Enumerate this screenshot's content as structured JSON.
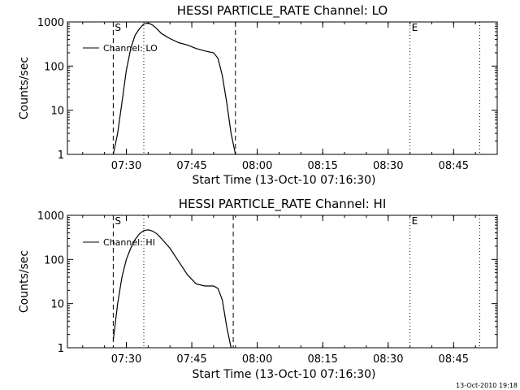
{
  "footer": {
    "timestamp": "13-Oct-2010 19:18"
  },
  "chart_data": [
    {
      "type": "line",
      "title": "HESSI PARTICLE_RATE Channel: LO",
      "xlabel": "Start Time (13-Oct-10 07:16:30)",
      "ylabel": "Counts/sec",
      "yscale": "log",
      "xlim": [
        "07:16:30",
        "08:55:00"
      ],
      "ylim": [
        1,
        1000
      ],
      "xticks": [
        "07:30",
        "07:45",
        "08:00",
        "08:15",
        "08:30",
        "08:45"
      ],
      "yticks": [
        "1",
        "10",
        "100",
        "1000"
      ],
      "grid": false,
      "legend_position": "top-left",
      "markers": [
        {
          "label": "S",
          "time": "07:27:00",
          "style": "dashed"
        },
        {
          "label": "",
          "time": "07:34:00",
          "style": "dotted"
        },
        {
          "label": "",
          "time": "07:55:00",
          "style": "dashed"
        },
        {
          "label": "E",
          "time": "08:35:00",
          "style": "dotted"
        },
        {
          "label": "",
          "time": "08:51:00",
          "style": "dotted"
        }
      ],
      "series": [
        {
          "name": "Channel: LO",
          "x": [
            "07:27:00",
            "07:28:00",
            "07:29:00",
            "07:30:00",
            "07:31:00",
            "07:32:00",
            "07:33:00",
            "07:34:00",
            "07:35:00",
            "07:36:00",
            "07:37:00",
            "07:38:00",
            "07:39:00",
            "07:40:00",
            "07:42:00",
            "07:44:00",
            "07:46:00",
            "07:48:00",
            "07:50:00",
            "07:51:00",
            "07:52:00",
            "07:53:00",
            "07:54:00",
            "07:55:00"
          ],
          "y": [
            1,
            3,
            15,
            80,
            250,
            500,
            700,
            900,
            950,
            850,
            700,
            550,
            480,
            420,
            340,
            300,
            250,
            220,
            200,
            150,
            60,
            15,
            3,
            1
          ]
        }
      ]
    },
    {
      "type": "line",
      "title": "HESSI PARTICLE_RATE Channel: HI",
      "xlabel": "Start Time (13-Oct-10 07:16:30)",
      "ylabel": "Counts/sec",
      "yscale": "log",
      "xlim": [
        "07:16:30",
        "08:55:00"
      ],
      "ylim": [
        1,
        1000
      ],
      "xticks": [
        "07:30",
        "07:45",
        "08:00",
        "08:15",
        "08:30",
        "08:45"
      ],
      "yticks": [
        "1",
        "10",
        "100",
        "1000"
      ],
      "grid": false,
      "legend_position": "top-left",
      "markers": [
        {
          "label": "S",
          "time": "07:27:00",
          "style": "dashed"
        },
        {
          "label": "",
          "time": "07:34:00",
          "style": "dotted"
        },
        {
          "label": "",
          "time": "07:54:30",
          "style": "dashed"
        },
        {
          "label": "E",
          "time": "08:35:00",
          "style": "dotted"
        },
        {
          "label": "",
          "time": "08:51:00",
          "style": "dotted"
        }
      ],
      "series": [
        {
          "name": "Channel: HI",
          "x": [
            "07:27:00",
            "07:28:00",
            "07:29:00",
            "07:30:00",
            "07:31:00",
            "07:32:00",
            "07:33:00",
            "07:34:00",
            "07:35:00",
            "07:36:00",
            "07:37:00",
            "07:38:00",
            "07:40:00",
            "07:42:00",
            "07:44:00",
            "07:46:00",
            "07:48:00",
            "07:50:00",
            "07:51:00",
            "07:52:00",
            "07:53:00",
            "07:54:00"
          ],
          "y": [
            1.5,
            10,
            40,
            100,
            180,
            280,
            380,
            450,
            470,
            440,
            380,
            300,
            180,
            90,
            45,
            28,
            25,
            25,
            22,
            12,
            3,
            1
          ]
        }
      ]
    }
  ]
}
